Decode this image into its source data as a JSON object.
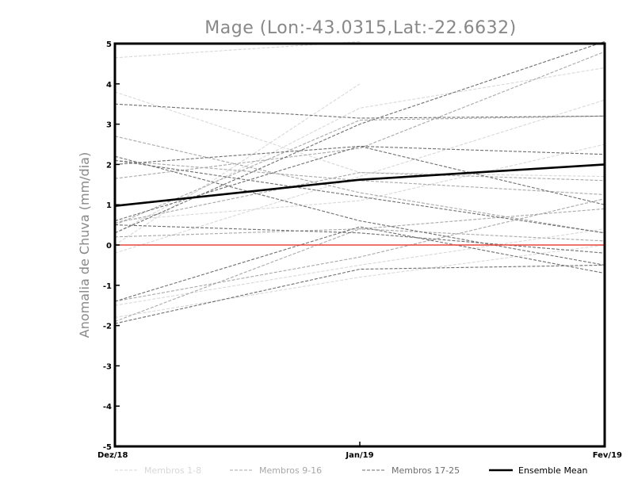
{
  "chart_data": {
    "type": "line",
    "title": "Mage (Lon:-43.0315,Lat:-22.6632)",
    "xlabel": "",
    "ylabel": "Anomalia de Chuva (mm/dia)",
    "categories": [
      "Dez/18",
      "Jan/19",
      "Fev/19"
    ],
    "ylim": [
      -5,
      5
    ],
    "yticks": [
      "5",
      "4",
      "3",
      "2",
      "1",
      "0",
      "-1",
      "-2",
      "-3",
      "-4",
      "-5"
    ],
    "zero_line_color": "#e8463a",
    "legend": {
      "position": "bottom",
      "entries": [
        {
          "label": "Membros 1-8",
          "color": "#d8d8d8",
          "style": "dashed"
        },
        {
          "label": "Membros 9-16",
          "color": "#a8a8a8",
          "style": "dashed"
        },
        {
          "label": "Membros 17-25",
          "color": "#6e6e6e",
          "style": "dashed"
        },
        {
          "label": "Ensemble Mean",
          "color": "#000000",
          "style": "solid"
        }
      ]
    },
    "series": [
      {
        "name": "Membro 1",
        "group": 1,
        "values": [
          4.65,
          5.05,
          null
        ]
      },
      {
        "name": "Membro 2",
        "group": 1,
        "values": [
          3.8,
          1.8,
          1.7
        ]
      },
      {
        "name": "Membro 3",
        "group": 1,
        "values": [
          0.3,
          3.4,
          4.4
        ]
      },
      {
        "name": "Membro 4",
        "group": 1,
        "values": [
          0.0,
          4.0,
          null
        ]
      },
      {
        "name": "Membro 5",
        "group": 1,
        "values": [
          0.6,
          1.1,
          2.5
        ]
      },
      {
        "name": "Membro 6",
        "group": 1,
        "values": [
          -1.5,
          -0.5,
          0.4
        ]
      },
      {
        "name": "Membro 7",
        "group": 1,
        "values": [
          -1.8,
          -0.8,
          0.0
        ]
      },
      {
        "name": "Membro 8",
        "group": 1,
        "values": [
          -0.2,
          1.7,
          3.6
        ]
      },
      {
        "name": "Membro 9",
        "group": 2,
        "values": [
          1.65,
          2.4,
          4.8
        ]
      },
      {
        "name": "Membro 10",
        "group": 2,
        "values": [
          2.7,
          1.3,
          0.3
        ]
      },
      {
        "name": "Membro 11",
        "group": 2,
        "values": [
          0.5,
          3.1,
          3.2
        ]
      },
      {
        "name": "Membro 12",
        "group": 2,
        "values": [
          0.55,
          1.8,
          1.6
        ]
      },
      {
        "name": "Membro 13",
        "group": 2,
        "values": [
          -1.4,
          -0.3,
          1.15
        ]
      },
      {
        "name": "Membro 14",
        "group": 2,
        "values": [
          2.1,
          1.6,
          1.25
        ]
      },
      {
        "name": "Membro 15",
        "group": 2,
        "values": [
          0.2,
          0.4,
          0.1
        ]
      },
      {
        "name": "Membro 16",
        "group": 2,
        "values": [
          -1.9,
          0.4,
          0.9
        ]
      },
      {
        "name": "Membro 17",
        "group": 3,
        "values": [
          3.5,
          3.15,
          3.2
        ]
      },
      {
        "name": "Membro 18",
        "group": 3,
        "values": [
          2.0,
          2.45,
          2.25
        ]
      },
      {
        "name": "Membro 19",
        "group": 3,
        "values": [
          0.3,
          3.0,
          5.05
        ]
      },
      {
        "name": "Membro 20",
        "group": 3,
        "values": [
          2.2,
          0.6,
          -0.5
        ]
      },
      {
        "name": "Membro 21",
        "group": 3,
        "values": [
          0.6,
          2.45,
          1.0
        ]
      },
      {
        "name": "Membro 22",
        "group": 3,
        "values": [
          -1.95,
          -0.6,
          -0.5
        ]
      },
      {
        "name": "Membro 23",
        "group": 3,
        "values": [
          -1.4,
          0.45,
          -0.7
        ]
      },
      {
        "name": "Membro 24",
        "group": 3,
        "values": [
          0.5,
          0.3,
          -0.2
        ]
      },
      {
        "name": "Membro 25",
        "group": 3,
        "values": [
          2.1,
          1.2,
          0.3
        ]
      },
      {
        "name": "Ensemble Mean",
        "group": 0,
        "values": [
          0.97,
          1.62,
          2.0
        ]
      }
    ]
  }
}
